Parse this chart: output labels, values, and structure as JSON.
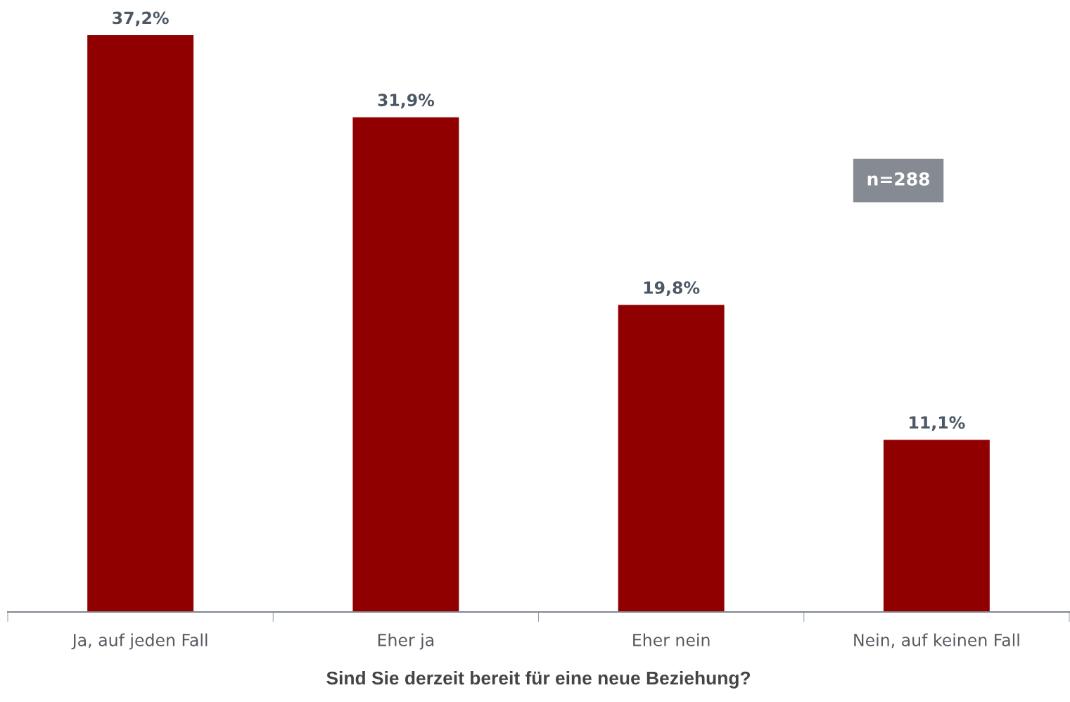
{
  "chart_data": {
    "type": "bar",
    "xlabel": "Sind Sie derzeit bereit für eine neue Beziehung?",
    "categories": [
      "Ja, auf jeden Fall",
      "Eher ja",
      "Eher nein",
      "Nein, auf keinen Fall"
    ],
    "values": [
      37.2,
      31.9,
      19.8,
      11.1
    ],
    "value_labels": [
      "37,2%",
      "31,9%",
      "19,8%",
      "11,1%"
    ],
    "color": "#900000",
    "annotations": [
      "n=288"
    ],
    "grid": false,
    "legend": false
  }
}
